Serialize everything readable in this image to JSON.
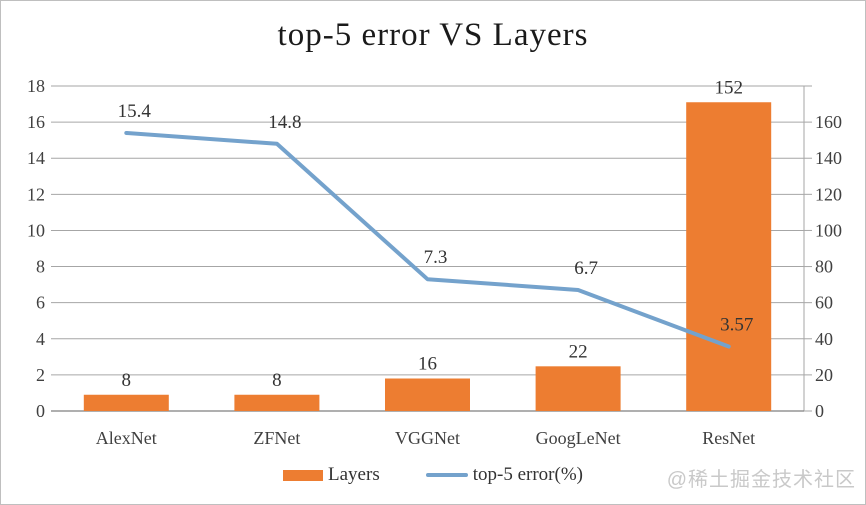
{
  "watermark": {
    "text": "@稀土掘金技术社区"
  },
  "colors": {
    "bar": "#ED7D31",
    "line": "#74A2CC",
    "grid": "#A6A6A6",
    "axis": "#7F7F7F",
    "tick_text": "#404040",
    "data_label": "#333333"
  },
  "chart_data": {
    "type": "bar",
    "subtype": "combo-bar-line-dual-axis",
    "title": "top-5 error VS Layers",
    "categories": [
      "AlexNet",
      "ZFNet",
      "VGGNet",
      "GoogLeNet",
      "ResNet"
    ],
    "series": [
      {
        "name": "Layers",
        "type": "bar",
        "axis": "right",
        "color": "#ED7D31",
        "values": [
          8,
          8,
          16,
          22,
          152
        ],
        "labels": [
          "8",
          "8",
          "16",
          "22",
          "152"
        ]
      },
      {
        "name": "top-5 error(%)",
        "type": "line",
        "axis": "left",
        "color": "#74A2CC",
        "values": [
          15.4,
          14.8,
          7.3,
          6.7,
          3.57
        ],
        "labels": [
          "15.4",
          "14.8",
          "7.3",
          "6.7",
          "3.57"
        ]
      }
    ],
    "left_axis": {
      "min": 0,
      "max": 18,
      "step": 2,
      "ticks": [
        "0",
        "2",
        "4",
        "6",
        "8",
        "10",
        "12",
        "14",
        "16",
        "18"
      ]
    },
    "right_axis": {
      "min": 0,
      "max": 160,
      "step": 20,
      "ticks": [
        "0",
        "20",
        "40",
        "60",
        "80",
        "100",
        "120",
        "140",
        "160"
      ]
    },
    "grid": true,
    "legend_position": "bottom"
  }
}
